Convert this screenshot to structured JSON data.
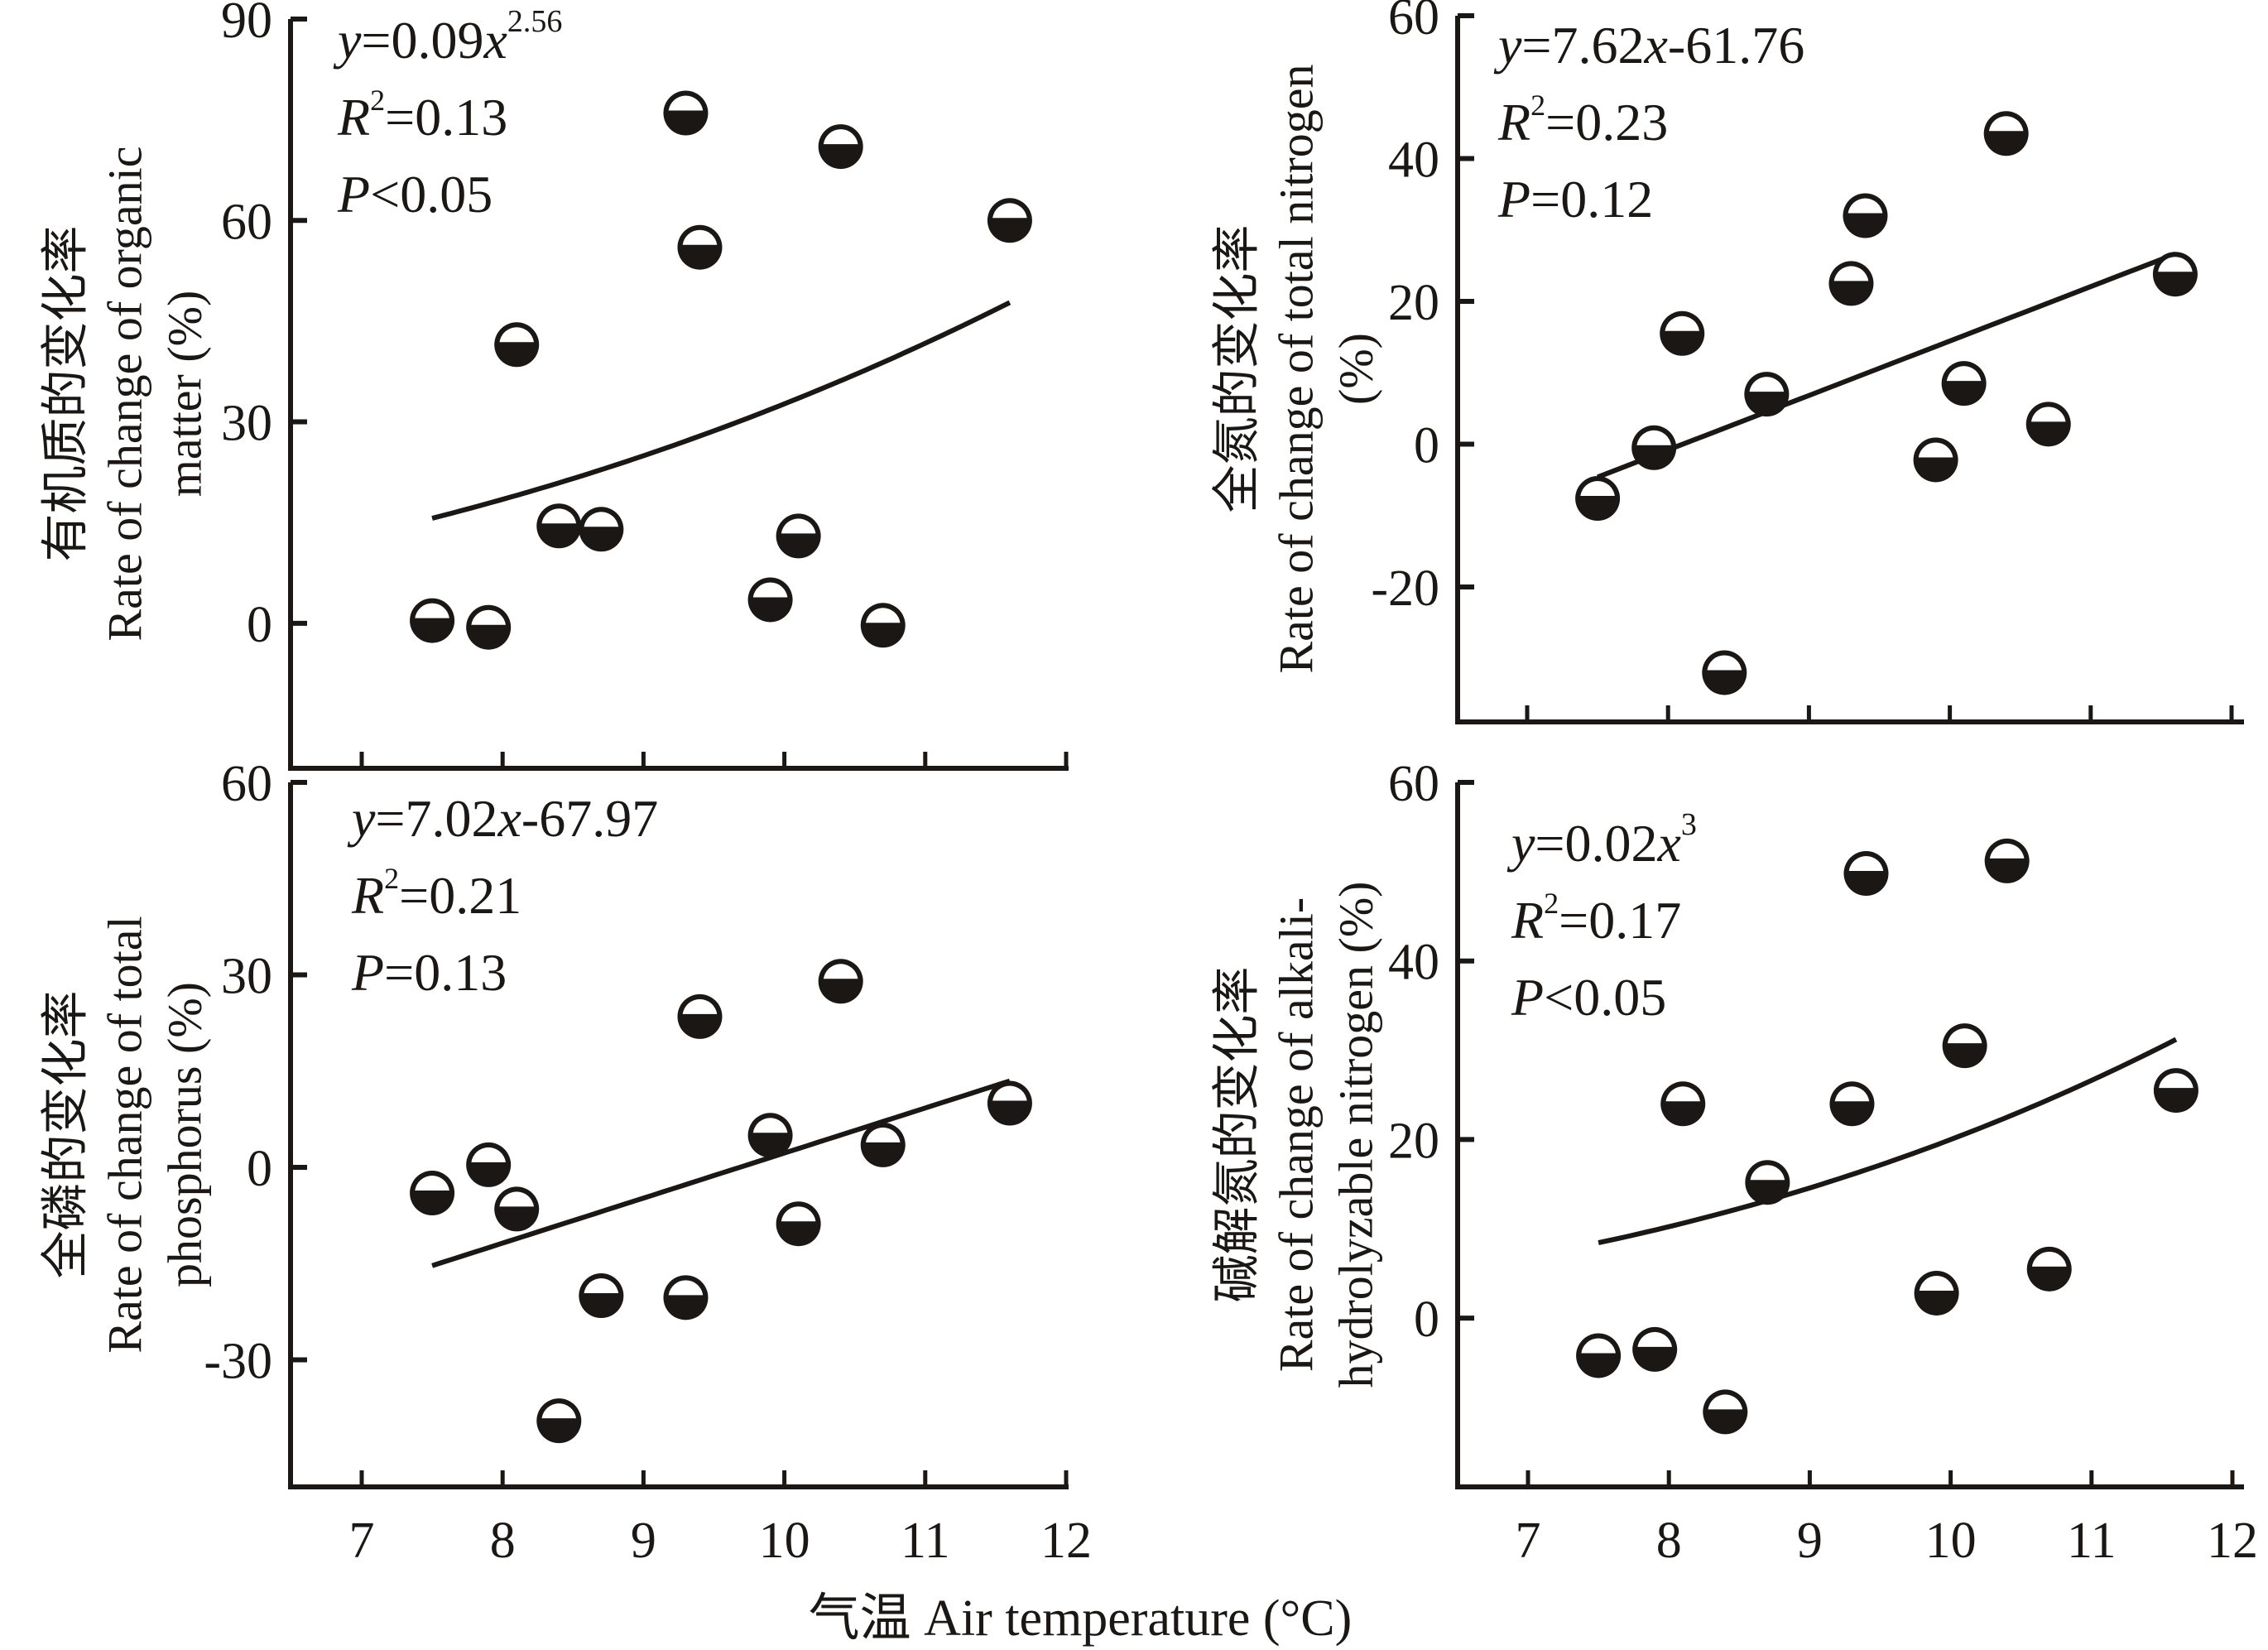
{
  "figure": {
    "xlabel": "气温 Air temperature (°C)"
  },
  "colors": {
    "ink": "#1a1714",
    "marker_fill_top": "#ffffff",
    "background": "#ffffff"
  },
  "chart_data": [
    {
      "type": "scatter",
      "panel": "top-left",
      "ylabel_lines": [
        "有机质的变化率",
        "Rate of change of organic",
        "matter (%)"
      ],
      "xlim": [
        6.5,
        12
      ],
      "ylim": [
        -21.6,
        90
      ],
      "xticks": [
        7,
        8,
        9,
        10,
        11,
        12
      ],
      "xtick_labels": [],
      "yticks": [
        0,
        30,
        60,
        90
      ],
      "ytick_labels": [
        "0",
        "30",
        "60",
        "90"
      ],
      "fit": {
        "kind": "power",
        "a": 0.09,
        "b": 2.56,
        "x_range": [
          7.5,
          11.6
        ]
      },
      "stats": {
        "equation": "y=0.09x^2.56",
        "eq_parts": [
          "y",
          "=0.09",
          "x",
          "2.56"
        ],
        "r2_value": "=0.13",
        "p_text": "<0.05"
      },
      "x": [
        7.5,
        7.9,
        8.1,
        8.4,
        8.7,
        9.3,
        9.4,
        9.9,
        10.1,
        10.4,
        10.7,
        11.6
      ],
      "y": [
        0.4,
        -0.6,
        41.5,
        14.5,
        14.0,
        76.0,
        56.0,
        3.5,
        13.0,
        71.0,
        -0.3,
        60.0
      ]
    },
    {
      "type": "scatter",
      "panel": "top-right",
      "ylabel_lines": [
        "全氮的变化率",
        "Rate of change of total nitrogen",
        "(%)"
      ],
      "xlim": [
        6.5,
        12
      ],
      "ylim": [
        -38.9,
        60
      ],
      "xticks": [
        7,
        8,
        9,
        10,
        11,
        12
      ],
      "xtick_labels": [],
      "yticks": [
        -20,
        0,
        20,
        40,
        60
      ],
      "ytick_labels": [
        "-20",
        "0",
        "20",
        "40",
        "60"
      ],
      "fit": {
        "kind": "linear",
        "a": 7.62,
        "b": -61.76,
        "x_range": [
          7.5,
          11.6
        ]
      },
      "stats": {
        "equation": "y=7.62x-61.76",
        "eq_parts": [
          "y",
          "=7.62",
          "x",
          "-61.76"
        ],
        "r2_value": "=0.23",
        "p_text": "=0.12"
      },
      "x": [
        7.5,
        7.9,
        8.1,
        8.4,
        8.7,
        9.3,
        9.4,
        9.9,
        10.1,
        10.4,
        10.7,
        11.6
      ],
      "y": [
        -7.6,
        -0.5,
        15.5,
        -32.0,
        7.0,
        22.5,
        32.0,
        -2.2,
        8.5,
        43.5,
        2.8,
        23.8
      ]
    },
    {
      "type": "scatter",
      "panel": "bottom-left",
      "ylabel_lines": [
        "全磷的变化率",
        "Rate of change of total",
        "phosphorus (%)"
      ],
      "xlim": [
        6.5,
        12
      ],
      "ylim": [
        -49.8,
        60
      ],
      "xticks": [
        7,
        8,
        9,
        10,
        11,
        12
      ],
      "xtick_labels": [
        "7",
        "8",
        "9",
        "10",
        "11",
        "12"
      ],
      "yticks": [
        -30,
        0,
        30,
        60
      ],
      "ytick_labels": [
        "-30",
        "0",
        "30",
        "60"
      ],
      "fit": {
        "kind": "linear",
        "a": 7.02,
        "b": -67.97,
        "x_range": [
          7.5,
          11.6
        ]
      },
      "stats": {
        "equation": "y=7.02x-67.97",
        "eq_parts": [
          "y",
          "=7.02",
          "x",
          "-67.97"
        ],
        "r2_value": "=0.21",
        "p_text": "=0.13"
      },
      "x": [
        7.5,
        7.9,
        8.1,
        8.4,
        8.7,
        9.3,
        9.4,
        9.9,
        10.1,
        10.4,
        10.7,
        11.6
      ],
      "y": [
        -4.0,
        0.4,
        -6.5,
        -39.5,
        -20.0,
        -20.3,
        23.5,
        5.0,
        -8.8,
        29.0,
        3.5,
        10.0
      ]
    },
    {
      "type": "scatter",
      "panel": "bottom-right",
      "ylabel_lines": [
        "碱解氮的变化率",
        "Rate of change of alkali-",
        "hydrolyzable nitrogen (%)"
      ],
      "xlim": [
        6.5,
        12
      ],
      "ylim": [
        -18.9,
        60
      ],
      "xticks": [
        7,
        8,
        9,
        10,
        11,
        12
      ],
      "xtick_labels": [
        "7",
        "8",
        "9",
        "10",
        "11",
        "12"
      ],
      "yticks": [
        0,
        20,
        40,
        60
      ],
      "ytick_labels": [
        "0",
        "20",
        "40",
        "60"
      ],
      "fit": {
        "kind": "power",
        "a": 0.02,
        "b": 3,
        "x_range": [
          7.5,
          11.6
        ]
      },
      "stats": {
        "equation": "y=0.02x^3",
        "eq_parts": [
          "y",
          "=0.02",
          "x",
          "3"
        ],
        "r2_value": "=0.17",
        "p_text": "<0.05"
      },
      "x": [
        7.5,
        7.9,
        8.1,
        8.4,
        8.7,
        9.3,
        9.4,
        9.9,
        10.1,
        10.4,
        10.7,
        11.6
      ],
      "y": [
        -4.2,
        -3.5,
        24.0,
        -10.5,
        15.2,
        24.0,
        49.8,
        2.8,
        30.5,
        51.2,
        5.5,
        25.5
      ]
    }
  ]
}
